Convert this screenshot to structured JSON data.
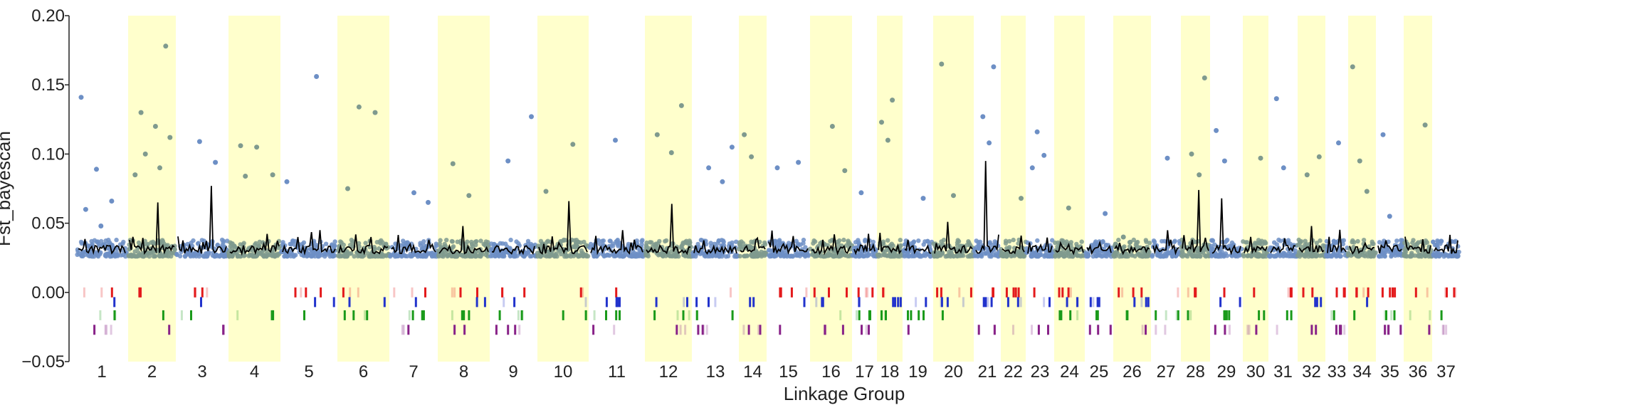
{
  "chart_data": {
    "type": "scatter",
    "xlabel": "Linkage Group",
    "ylabel": "Fst_bayescan",
    "ylim": [
      -0.05,
      0.2
    ],
    "y_ticks": [
      "0.20",
      "0.15",
      "0.10",
      "0.05",
      "0.00",
      "−0.05"
    ],
    "y_tick_values": [
      0.2,
      0.15,
      0.1,
      0.05,
      0.0,
      -0.05
    ],
    "grid": false,
    "legend": "none",
    "linkage_groups": [
      "1",
      "2",
      "3",
      "4",
      "5",
      "6",
      "7",
      "8",
      "9",
      "10",
      "11",
      "12",
      "13",
      "14",
      "15",
      "16",
      "17",
      "18",
      "19",
      "20",
      "21",
      "22",
      "23",
      "24",
      "25",
      "26",
      "27",
      "28",
      "29",
      "30",
      "31",
      "32",
      "33",
      "34",
      "35",
      "36",
      "37"
    ],
    "highlighted_groups": [
      "2",
      "4",
      "6",
      "8",
      "10",
      "12",
      "14",
      "16",
      "18",
      "20",
      "22",
      "24",
      "26",
      "28",
      "30",
      "32",
      "34",
      "36"
    ],
    "colors": {
      "band": "#ffffcc",
      "points_odd": "#6d8fc5",
      "points_even": "#7f9a8e",
      "rolling_mean": "#000000",
      "track_1": "#e31a1c",
      "track_2": "#2233cc",
      "track_3": "#1a9a1a",
      "track_4": "#882288"
    },
    "series": [
      {
        "type": "scatter",
        "note_outliers": [
          {
            "lg": "1",
            "y": 0.141
          },
          {
            "lg": "1",
            "y": 0.089
          },
          {
            "lg": "1",
            "y": 0.066
          },
          {
            "lg": "1",
            "y": 0.06
          },
          {
            "lg": "1",
            "y": 0.048
          },
          {
            "lg": "2",
            "y": 0.178
          },
          {
            "lg": "2",
            "y": 0.13
          },
          {
            "lg": "2",
            "y": 0.12
          },
          {
            "lg": "2",
            "y": 0.112
          },
          {
            "lg": "2",
            "y": 0.1
          },
          {
            "lg": "2",
            "y": 0.09
          },
          {
            "lg": "2",
            "y": 0.085
          },
          {
            "lg": "3",
            "y": 0.109
          },
          {
            "lg": "3",
            "y": 0.094
          },
          {
            "lg": "4",
            "y": 0.106
          },
          {
            "lg": "4",
            "y": 0.105
          },
          {
            "lg": "4",
            "y": 0.085
          },
          {
            "lg": "4",
            "y": 0.084
          },
          {
            "lg": "5",
            "y": 0.156
          },
          {
            "lg": "5",
            "y": 0.08
          },
          {
            "lg": "6",
            "y": 0.134
          },
          {
            "lg": "6",
            "y": 0.13
          },
          {
            "lg": "6",
            "y": 0.075
          },
          {
            "lg": "7",
            "y": 0.072
          },
          {
            "lg": "7",
            "y": 0.065
          },
          {
            "lg": "8",
            "y": 0.093
          },
          {
            "lg": "8",
            "y": 0.07
          },
          {
            "lg": "9",
            "y": 0.127
          },
          {
            "lg": "9",
            "y": 0.095
          },
          {
            "lg": "10",
            "y": 0.107
          },
          {
            "lg": "10",
            "y": 0.073
          },
          {
            "lg": "11",
            "y": 0.11
          },
          {
            "lg": "12",
            "y": 0.135
          },
          {
            "lg": "12",
            "y": 0.114
          },
          {
            "lg": "12",
            "y": 0.101
          },
          {
            "lg": "13",
            "y": 0.105
          },
          {
            "lg": "13",
            "y": 0.09
          },
          {
            "lg": "13",
            "y": 0.08
          },
          {
            "lg": "14",
            "y": 0.114
          },
          {
            "lg": "14",
            "y": 0.098
          },
          {
            "lg": "15",
            "y": 0.094
          },
          {
            "lg": "15",
            "y": 0.09
          },
          {
            "lg": "16",
            "y": 0.12
          },
          {
            "lg": "16",
            "y": 0.088
          },
          {
            "lg": "17",
            "y": 0.072
          },
          {
            "lg": "18",
            "y": 0.139
          },
          {
            "lg": "18",
            "y": 0.123
          },
          {
            "lg": "18",
            "y": 0.11
          },
          {
            "lg": "19",
            "y": 0.068
          },
          {
            "lg": "20",
            "y": 0.165
          },
          {
            "lg": "20",
            "y": 0.07
          },
          {
            "lg": "21",
            "y": 0.163
          },
          {
            "lg": "21",
            "y": 0.127
          },
          {
            "lg": "21",
            "y": 0.108
          },
          {
            "lg": "22",
            "y": 0.068
          },
          {
            "lg": "23",
            "y": 0.116
          },
          {
            "lg": "23",
            "y": 0.099
          },
          {
            "lg": "23",
            "y": 0.09
          },
          {
            "lg": "24",
            "y": 0.061
          },
          {
            "lg": "25",
            "y": 0.057
          },
          {
            "lg": "26",
            "y": 0.04
          },
          {
            "lg": "27",
            "y": 0.097
          },
          {
            "lg": "28",
            "y": 0.155
          },
          {
            "lg": "28",
            "y": 0.1
          },
          {
            "lg": "28",
            "y": 0.085
          },
          {
            "lg": "29",
            "y": 0.117
          },
          {
            "lg": "29",
            "y": 0.095
          },
          {
            "lg": "30",
            "y": 0.097
          },
          {
            "lg": "31",
            "y": 0.14
          },
          {
            "lg": "31",
            "y": 0.09
          },
          {
            "lg": "32",
            "y": 0.098
          },
          {
            "lg": "32",
            "y": 0.085
          },
          {
            "lg": "33",
            "y": 0.108
          },
          {
            "lg": "34",
            "y": 0.163
          },
          {
            "lg": "34",
            "y": 0.095
          },
          {
            "lg": "34",
            "y": 0.073
          },
          {
            "lg": "35",
            "y": 0.114
          },
          {
            "lg": "35",
            "y": 0.055
          },
          {
            "lg": "36",
            "y": 0.121
          },
          {
            "lg": "37",
            "y": 0.037
          }
        ]
      }
    ]
  }
}
